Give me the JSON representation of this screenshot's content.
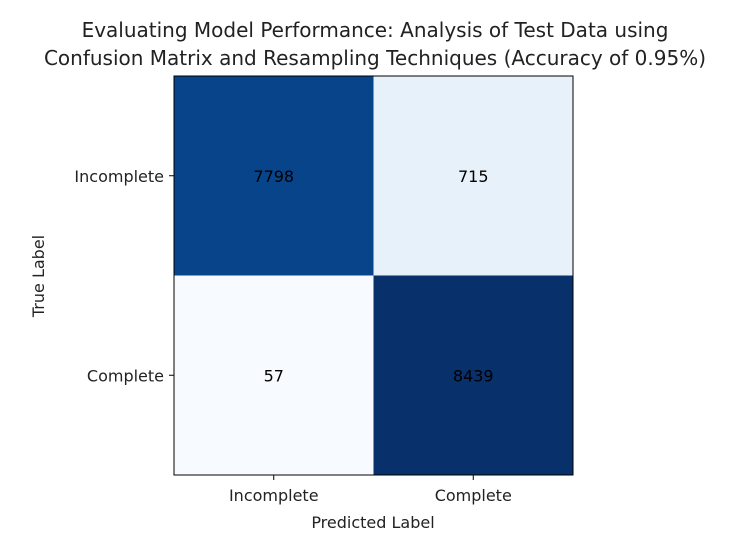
{
  "chart_data": {
    "type": "heatmap",
    "title": [
      "Evaluating Model Performance: Analysis of Test Data using",
      "Confusion Matrix and Resampling Techniques (Accuracy of 0.95%)"
    ],
    "xlabel": "Predicted Label",
    "ylabel": "True Label",
    "x_categories": [
      "Incomplete",
      "Complete"
    ],
    "y_categories": [
      "Incomplete",
      "Complete"
    ],
    "values": [
      [
        7798,
        715
      ],
      [
        57,
        8439
      ]
    ],
    "colormap": "Blues",
    "cell_text_color": "#000000",
    "grid": false,
    "legend": "none"
  }
}
